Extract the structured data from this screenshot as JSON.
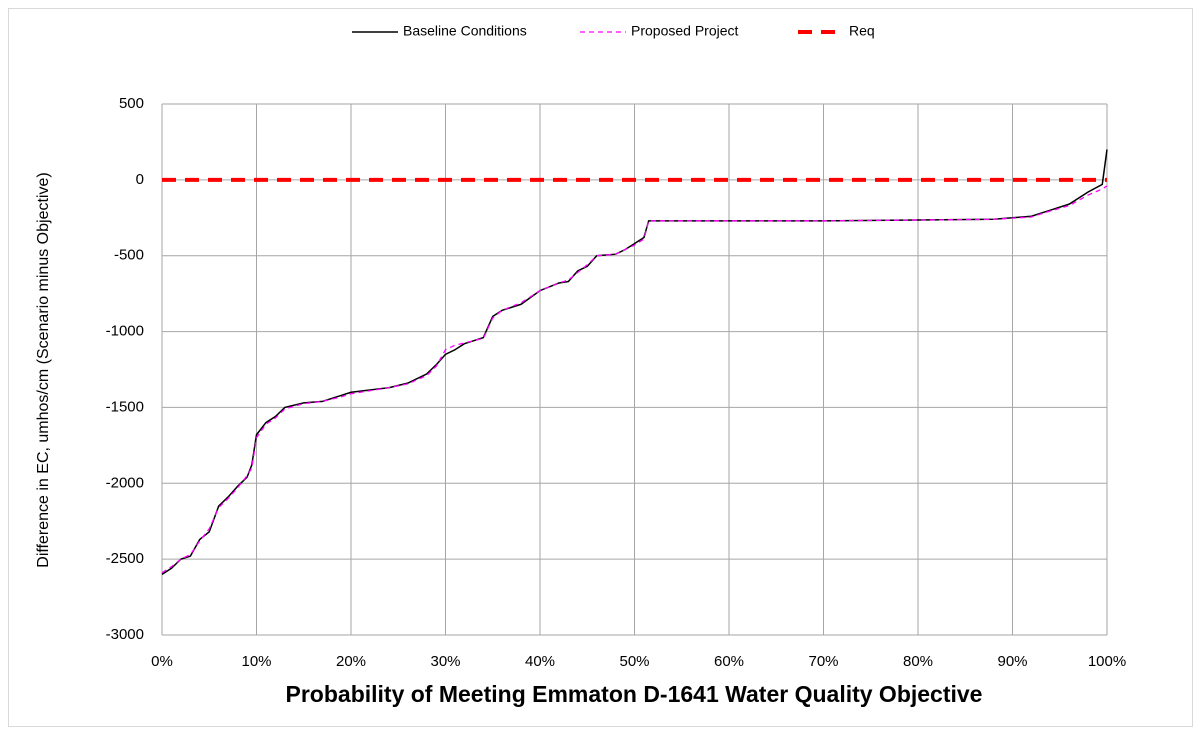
{
  "chart_data": {
    "type": "line",
    "x_label": "Probability of Meeting Emmaton D-1641 Water Quality Objective",
    "y_label": "Difference in EC, umhos/cm (Scenario minus Objective)",
    "xlim": [
      0,
      100
    ],
    "ylim": [
      -3000,
      500
    ],
    "xticks": [
      {
        "value": 0,
        "label": "0%"
      },
      {
        "value": 10,
        "label": "10%"
      },
      {
        "value": 20,
        "label": "20%"
      },
      {
        "value": 30,
        "label": "30%"
      },
      {
        "value": 40,
        "label": "40%"
      },
      {
        "value": 50,
        "label": "50%"
      },
      {
        "value": 60,
        "label": "60%"
      },
      {
        "value": 70,
        "label": "70%"
      },
      {
        "value": 80,
        "label": "80%"
      },
      {
        "value": 90,
        "label": "90%"
      },
      {
        "value": 100,
        "label": "100%"
      }
    ],
    "yticks": [
      500,
      0,
      -500,
      -1000,
      -1500,
      -2000,
      -2500,
      -3000
    ],
    "grid": true,
    "legend": "top",
    "series": [
      {
        "name": "Baseline Conditions",
        "color": "#000000",
        "style": "solid",
        "width": 1.5,
        "x": [
          0,
          1,
          2,
          3,
          4,
          5,
          6,
          7,
          8,
          9,
          9.5,
          10,
          11,
          12,
          13,
          15,
          17,
          19,
          20,
          22,
          24,
          26,
          28,
          29,
          30,
          31,
          32,
          33,
          34,
          35,
          36,
          38,
          40,
          42,
          43,
          44,
          45,
          46,
          48,
          49,
          50,
          51,
          51.5,
          60,
          70,
          80,
          88,
          92,
          94,
          96,
          98,
          99.5,
          100
        ],
        "values": [
          -2600,
          -2560,
          -2500,
          -2480,
          -2370,
          -2320,
          -2150,
          -2090,
          -2020,
          -1960,
          -1880,
          -1680,
          -1600,
          -1560,
          -1500,
          -1470,
          -1460,
          -1420,
          -1400,
          -1385,
          -1370,
          -1340,
          -1280,
          -1220,
          -1150,
          -1120,
          -1080,
          -1060,
          -1040,
          -900,
          -860,
          -820,
          -730,
          -680,
          -670,
          -600,
          -570,
          -500,
          -490,
          -460,
          -420,
          -380,
          -270,
          -270,
          -270,
          -265,
          -260,
          -240,
          -200,
          -160,
          -80,
          -30,
          200
        ]
      },
      {
        "name": "Proposed Project",
        "color": "#ff00ff",
        "style": "dash",
        "width": 1.3,
        "x": [
          0,
          1,
          2,
          3,
          4,
          5,
          6,
          7,
          8,
          9,
          9.5,
          10,
          11,
          12,
          13,
          15,
          17,
          19,
          20,
          22,
          24,
          26,
          28,
          29,
          30,
          31,
          32,
          33,
          34,
          35,
          36,
          38,
          40,
          42,
          43,
          44,
          45,
          46,
          48,
          49,
          50,
          51,
          51.5,
          60,
          70,
          80,
          88,
          92,
          94,
          96,
          98,
          99.5,
          100
        ],
        "values": [
          -2590,
          -2550,
          -2500,
          -2470,
          -2380,
          -2300,
          -2160,
          -2100,
          -2030,
          -1950,
          -1900,
          -1700,
          -1610,
          -1570,
          -1510,
          -1475,
          -1460,
          -1430,
          -1410,
          -1390,
          -1370,
          -1345,
          -1290,
          -1230,
          -1120,
          -1090,
          -1075,
          -1060,
          -1045,
          -910,
          -860,
          -810,
          -730,
          -680,
          -660,
          -610,
          -560,
          -500,
          -490,
          -460,
          -430,
          -390,
          -270,
          -270,
          -270,
          -265,
          -260,
          -245,
          -205,
          -170,
          -100,
          -60,
          -40
        ]
      },
      {
        "name": "Req",
        "color": "#ff0000",
        "style": "bigdash",
        "width": 4,
        "x": [
          0,
          100
        ],
        "values": [
          0,
          0
        ]
      }
    ]
  }
}
